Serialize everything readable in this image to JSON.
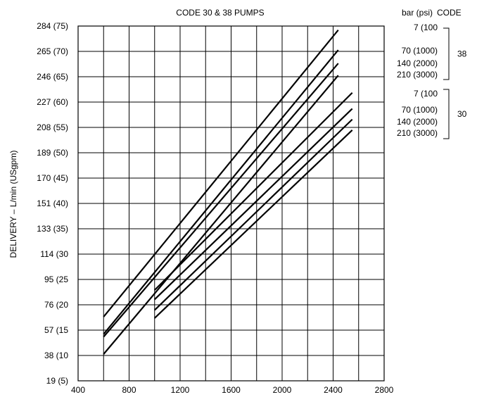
{
  "chart_data": {
    "type": "line",
    "title": "CODE 30 & 38 PUMPS",
    "ylabel": "DELIVERY  – L/min (USgpm)",
    "xlabel": "",
    "xlim": [
      400,
      2800
    ],
    "ylim": [
      19,
      284
    ],
    "x_ticks": [
      400,
      800,
      1200,
      1600,
      2000,
      2400,
      2800
    ],
    "x_tick_labels": [
      "400",
      "800",
      "1200",
      "1600",
      "2000",
      "2400",
      "2800"
    ],
    "x_grid_step": 200,
    "y_ticks": [
      19,
      38,
      57,
      76,
      95,
      114,
      133,
      151,
      170,
      189,
      208,
      227,
      246,
      265,
      284
    ],
    "y_tick_labels": [
      "19 (5)",
      "38 (10",
      "57 (15",
      "76 (20",
      "95 (25",
      "114 (30",
      "133 (35)",
      "151 (40)",
      "170 (45)",
      "189 (50)",
      "208 (55)",
      "227 (60)",
      "246 (65)",
      "265 (70)",
      "284 (75)"
    ],
    "grid": true,
    "legend_header": {
      "pressure": "bar (psi)",
      "code": "CODE"
    },
    "legend_groups": [
      {
        "code": "38",
        "entries": [
          "7 (100",
          "70 (1000)",
          "140 (2000)",
          "210 (3000)"
        ]
      },
      {
        "code": "30",
        "entries": [
          "7 (100",
          "70 (1000)",
          "140 (2000)",
          "210 (3000)"
        ]
      }
    ],
    "series": [
      {
        "code": "38",
        "pressure": "7 (100",
        "x": [
          600,
          2440
        ],
        "y": [
          67,
          281
        ]
      },
      {
        "code": "38",
        "pressure": "70 (1000)",
        "x": [
          600,
          2440
        ],
        "y": [
          54,
          266
        ]
      },
      {
        "code": "38",
        "pressure": "140 (2000)",
        "x": [
          600,
          2440
        ],
        "y": [
          52,
          256
        ]
      },
      {
        "code": "38",
        "pressure": "210 (3000)",
        "x": [
          600,
          2440
        ],
        "y": [
          39,
          247
        ]
      },
      {
        "code": "30",
        "pressure": "7 (100",
        "x": [
          1000,
          2550
        ],
        "y": [
          87,
          234
        ]
      },
      {
        "code": "30",
        "pressure": "70 (1000)",
        "x": [
          1000,
          2550
        ],
        "y": [
          80,
          222
        ]
      },
      {
        "code": "30",
        "pressure": "140 (2000)",
        "x": [
          1000,
          2550
        ],
        "y": [
          72,
          214
        ]
      },
      {
        "code": "30",
        "pressure": "210 (3000)",
        "x": [
          1000,
          2550
        ],
        "y": [
          66,
          206
        ]
      }
    ]
  }
}
